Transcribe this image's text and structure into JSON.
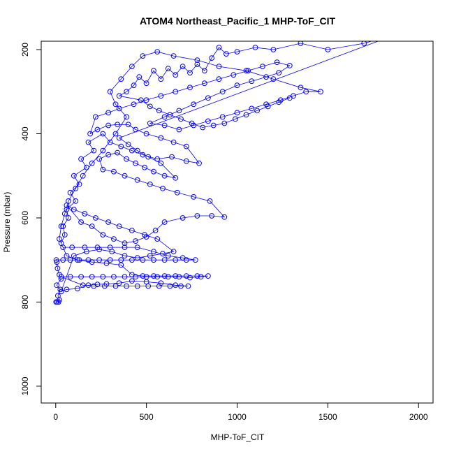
{
  "chart_data": {
    "type": "scatter",
    "title": "ATOM4 Northeast_Pacific_1 MHP-ToF_CIT",
    "xlabel": "MHP-ToF_CIT",
    "ylabel": "Pressure (mbar)",
    "xlim": [
      -80,
      2080
    ],
    "ylim": [
      1040,
      180
    ],
    "y_inverted": true,
    "x_ticks": [
      0,
      500,
      1000,
      1500,
      2000
    ],
    "x_tick_labels": [
      "0",
      "500",
      "1000",
      "1500",
      "2000"
    ],
    "y_ticks": [
      200,
      400,
      600,
      800,
      1000
    ],
    "y_tick_labels": [
      "200",
      "400",
      "600",
      "800",
      "1000"
    ],
    "grid": false,
    "legend": "none",
    "markers": "open-circle",
    "connected": true,
    "color": "#0000ff",
    "points": [
      [
        2,
        800
      ],
      [
        8,
        800
      ],
      [
        15,
        800
      ],
      [
        20,
        795
      ],
      [
        12,
        785
      ],
      [
        25,
        770
      ],
      [
        5,
        760
      ],
      [
        30,
        745
      ],
      [
        20,
        735
      ],
      [
        10,
        720
      ],
      [
        6,
        705
      ],
      [
        3,
        700
      ],
      [
        40,
        700
      ],
      [
        80,
        700
      ],
      [
        130,
        700
      ],
      [
        180,
        700
      ],
      [
        240,
        700
      ],
      [
        300,
        700
      ],
      [
        360,
        700
      ],
      [
        420,
        700
      ],
      [
        480,
        700
      ],
      [
        540,
        700
      ],
      [
        600,
        700
      ],
      [
        660,
        700
      ],
      [
        720,
        700
      ],
      [
        770,
        700
      ],
      [
        700,
        695
      ],
      [
        620,
        690
      ],
      [
        540,
        680
      ],
      [
        450,
        670
      ],
      [
        380,
        670
      ],
      [
        300,
        670
      ],
      [
        230,
        670
      ],
      [
        160,
        670
      ],
      [
        90,
        670
      ],
      [
        40,
        670
      ],
      [
        30,
        660
      ],
      [
        50,
        640
      ],
      [
        40,
        620
      ],
      [
        70,
        600
      ],
      [
        60,
        580
      ],
      [
        110,
        560
      ],
      [
        80,
        540
      ],
      [
        130,
        520
      ],
      [
        100,
        500
      ],
      [
        170,
        480
      ],
      [
        140,
        460
      ],
      [
        210,
        440
      ],
      [
        180,
        420
      ],
      [
        260,
        400
      ],
      [
        300,
        420
      ],
      [
        360,
        430
      ],
      [
        420,
        440
      ],
      [
        480,
        450
      ],
      [
        560,
        460
      ],
      [
        640,
        455
      ],
      [
        720,
        465
      ],
      [
        790,
        470
      ],
      [
        720,
        430
      ],
      [
        650,
        420
      ],
      [
        580,
        410
      ],
      [
        500,
        400
      ],
      [
        440,
        390
      ],
      [
        400,
        378
      ],
      [
        340,
        378
      ],
      [
        290,
        380
      ],
      [
        230,
        390
      ],
      [
        190,
        400
      ],
      [
        220,
        360
      ],
      [
        290,
        350
      ],
      [
        350,
        340
      ],
      [
        430,
        330
      ],
      [
        500,
        320
      ],
      [
        580,
        310
      ],
      [
        660,
        300
      ],
      [
        740,
        290
      ],
      [
        820,
        280
      ],
      [
        900,
        270
      ],
      [
        980,
        260
      ],
      [
        1060,
        250
      ],
      [
        1140,
        240
      ],
      [
        1220,
        230
      ],
      [
        1290,
        238
      ],
      [
        1230,
        255
      ],
      [
        1160,
        265
      ],
      [
        1080,
        275
      ],
      [
        1000,
        285
      ],
      [
        920,
        300
      ],
      [
        840,
        315
      ],
      [
        760,
        330
      ],
      [
        680,
        345
      ],
      [
        600,
        360
      ],
      [
        520,
        375
      ],
      [
        600,
        380
      ],
      [
        680,
        390
      ],
      [
        760,
        380
      ],
      [
        840,
        370
      ],
      [
        920,
        360
      ],
      [
        1000,
        350
      ],
      [
        1080,
        340
      ],
      [
        1160,
        330
      ],
      [
        1240,
        320
      ],
      [
        1310,
        310
      ],
      [
        1380,
        300
      ],
      [
        1460,
        300
      ],
      [
        1350,
        290
      ],
      [
        1200,
        270
      ],
      [
        1050,
        250
      ],
      [
        900,
        240
      ],
      [
        780,
        225
      ],
      [
        650,
        215
      ],
      [
        560,
        205
      ],
      [
        480,
        215
      ],
      [
        420,
        240
      ],
      [
        360,
        270
      ],
      [
        300,
        300
      ],
      [
        330,
        330
      ],
      [
        390,
        360
      ],
      [
        330,
        400
      ],
      [
        260,
        440
      ],
      [
        200,
        470
      ],
      [
        150,
        500
      ],
      [
        110,
        530
      ],
      [
        70,
        560
      ],
      [
        50,
        590
      ],
      [
        30,
        620
      ],
      [
        20,
        650
      ],
      [
        60,
        690
      ],
      [
        120,
        700
      ],
      [
        200,
        705
      ],
      [
        280,
        708
      ],
      [
        360,
        712
      ],
      [
        420,
        735
      ],
      [
        480,
        738
      ],
      [
        540,
        738
      ],
      [
        600,
        738
      ],
      [
        660,
        738
      ],
      [
        720,
        738
      ],
      [
        780,
        738
      ],
      [
        840,
        738
      ],
      [
        800,
        740
      ],
      [
        740,
        742
      ],
      [
        680,
        740
      ],
      [
        620,
        740
      ],
      [
        560,
        740
      ],
      [
        500,
        740
      ],
      [
        440,
        740
      ],
      [
        380,
        740
      ],
      [
        320,
        740
      ],
      [
        260,
        740
      ],
      [
        200,
        740
      ],
      [
        140,
        740
      ],
      [
        80,
        740
      ],
      [
        30,
        740
      ],
      [
        150,
        760
      ],
      [
        210,
        762
      ],
      [
        270,
        762
      ],
      [
        330,
        762
      ],
      [
        390,
        762
      ],
      [
        450,
        762
      ],
      [
        510,
        762
      ],
      [
        570,
        762
      ],
      [
        630,
        762
      ],
      [
        690,
        762
      ],
      [
        730,
        762
      ],
      [
        660,
        760
      ],
      [
        580,
        755
      ],
      [
        500,
        752
      ],
      [
        420,
        750
      ],
      [
        350,
        755
      ],
      [
        280,
        757
      ],
      [
        230,
        758
      ],
      [
        180,
        760
      ],
      [
        120,
        768
      ],
      [
        60,
        770
      ],
      [
        30,
        775
      ],
      [
        100,
        690
      ],
      [
        170,
        680
      ],
      [
        240,
        675
      ],
      [
        310,
        680
      ],
      [
        380,
        690
      ],
      [
        450,
        695
      ],
      [
        520,
        690
      ],
      [
        590,
        685
      ],
      [
        650,
        680
      ],
      [
        560,
        650
      ],
      [
        490,
        640
      ],
      [
        420,
        630
      ],
      [
        350,
        620
      ],
      [
        290,
        610
      ],
      [
        220,
        600
      ],
      [
        160,
        590
      ],
      [
        100,
        580
      ],
      [
        60,
        570
      ],
      [
        140,
        610
      ],
      [
        200,
        620
      ],
      [
        260,
        640
      ],
      [
        320,
        650
      ],
      [
        380,
        660
      ],
      [
        440,
        655
      ],
      [
        500,
        645
      ],
      [
        550,
        630
      ],
      [
        600,
        610
      ],
      [
        700,
        600
      ],
      [
        780,
        595
      ],
      [
        860,
        595
      ],
      [
        930,
        598
      ],
      [
        850,
        560
      ],
      [
        760,
        550
      ],
      [
        670,
        540
      ],
      [
        590,
        530
      ],
      [
        520,
        520
      ],
      [
        450,
        510
      ],
      [
        380,
        500
      ],
      [
        320,
        490
      ],
      [
        260,
        485
      ],
      [
        240,
        460
      ],
      [
        290,
        450
      ],
      [
        340,
        445
      ],
      [
        390,
        460
      ],
      [
        440,
        470
      ],
      [
        490,
        480
      ],
      [
        540,
        490
      ],
      [
        600,
        500
      ],
      [
        660,
        505
      ],
      [
        580,
        470
      ],
      [
        510,
        455
      ],
      [
        450,
        440
      ],
      [
        400,
        425
      ],
      [
        350,
        410
      ],
      [
        1900,
        160
      ],
      [
        1700,
        185
      ],
      [
        1500,
        200
      ],
      [
        1350,
        185
      ],
      [
        1200,
        200
      ],
      [
        1100,
        195
      ],
      [
        1000,
        205
      ],
      [
        940,
        210
      ],
      [
        900,
        195
      ],
      [
        860,
        220
      ],
      [
        820,
        250
      ],
      [
        780,
        235
      ],
      [
        740,
        255
      ],
      [
        700,
        240
      ],
      [
        660,
        260
      ],
      [
        620,
        245
      ],
      [
        580,
        270
      ],
      [
        540,
        250
      ],
      [
        500,
        280
      ],
      [
        460,
        265
      ],
      [
        430,
        285
      ],
      [
        390,
        300
      ],
      [
        350,
        310
      ],
      [
        470,
        320
      ],
      [
        520,
        335
      ],
      [
        570,
        345
      ],
      [
        630,
        355
      ],
      [
        690,
        365
      ],
      [
        750,
        375
      ],
      [
        810,
        385
      ],
      [
        870,
        380
      ],
      [
        930,
        375
      ],
      [
        990,
        365
      ],
      [
        1050,
        355
      ],
      [
        1110,
        345
      ],
      [
        1170,
        335
      ],
      [
        1230,
        325
      ],
      [
        1290,
        315
      ]
    ]
  }
}
